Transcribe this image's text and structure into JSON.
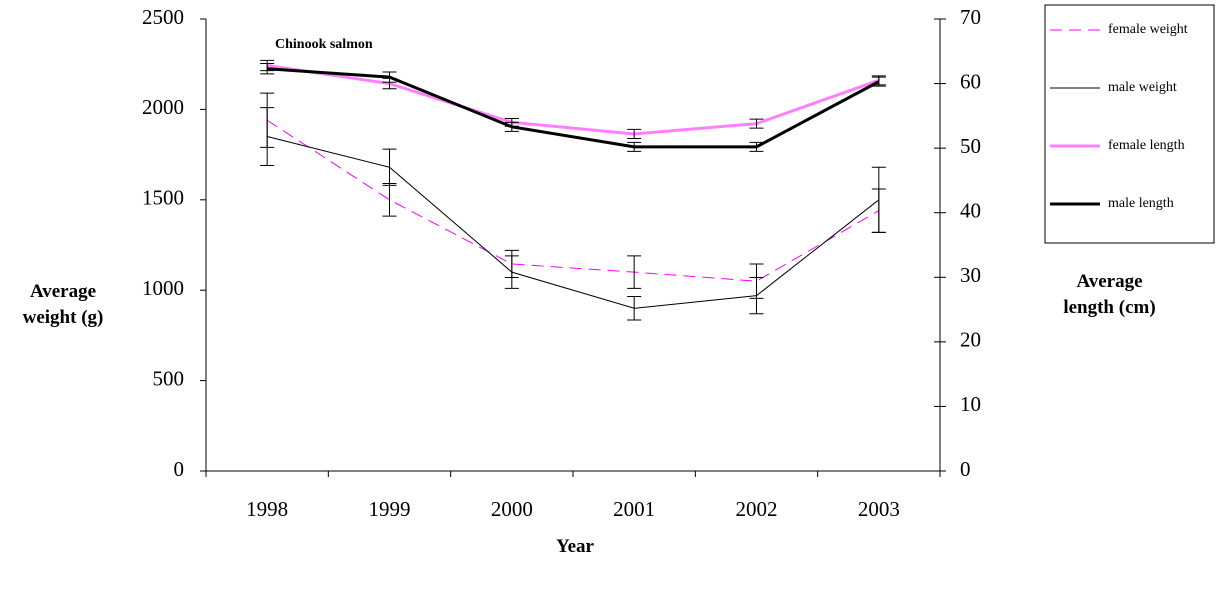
{
  "chart_data": {
    "type": "line",
    "title": "Chinook salmon",
    "xlabel": "Year",
    "ylabel": "Average weight (g)",
    "y2label": "Average length (cm)",
    "categories": [
      "1998",
      "1999",
      "2000",
      "2001",
      "2002",
      "2003"
    ],
    "ylim": [
      0,
      2500
    ],
    "yticks": [
      0,
      500,
      1000,
      1500,
      2000,
      2500
    ],
    "y2lim": [
      0,
      70
    ],
    "y2ticks": [
      0,
      10,
      20,
      30,
      40,
      50,
      60,
      70
    ],
    "grid": false,
    "legend": "right",
    "series": [
      {
        "name": "female weight",
        "color": "#ff00ff",
        "style": "dashed",
        "width": 1,
        "values": [
          1940,
          1500,
          1145,
          1100,
          1050,
          1440
        ],
        "errors": [
          150,
          90,
          75,
          90,
          95,
          120
        ]
      },
      {
        "name": "male weight",
        "color": "#000000",
        "style": "solid",
        "width": 1,
        "values": [
          1850,
          1680,
          1100,
          900,
          970,
          1500
        ],
        "errors": [
          160,
          100,
          90,
          65,
          100,
          180
        ]
      },
      {
        "name": "female length",
        "color": "#ff80ff",
        "style": "solid",
        "width": 3,
        "axis": "y2",
        "values": [
          62.8,
          60,
          54,
          52.2,
          53.8,
          60.5
        ],
        "errors": [
          0.8,
          0.8,
          0.6,
          0.7,
          0.7,
          0.7
        ]
      },
      {
        "name": "male length",
        "color": "#000000",
        "style": "solid",
        "width": 3,
        "axis": "y2",
        "values": [
          62.3,
          61,
          53.3,
          50.2,
          50.2,
          60.3
        ],
        "errors": [
          0.8,
          0.8,
          0.7,
          0.7,
          0.7,
          0.7
        ]
      }
    ]
  }
}
